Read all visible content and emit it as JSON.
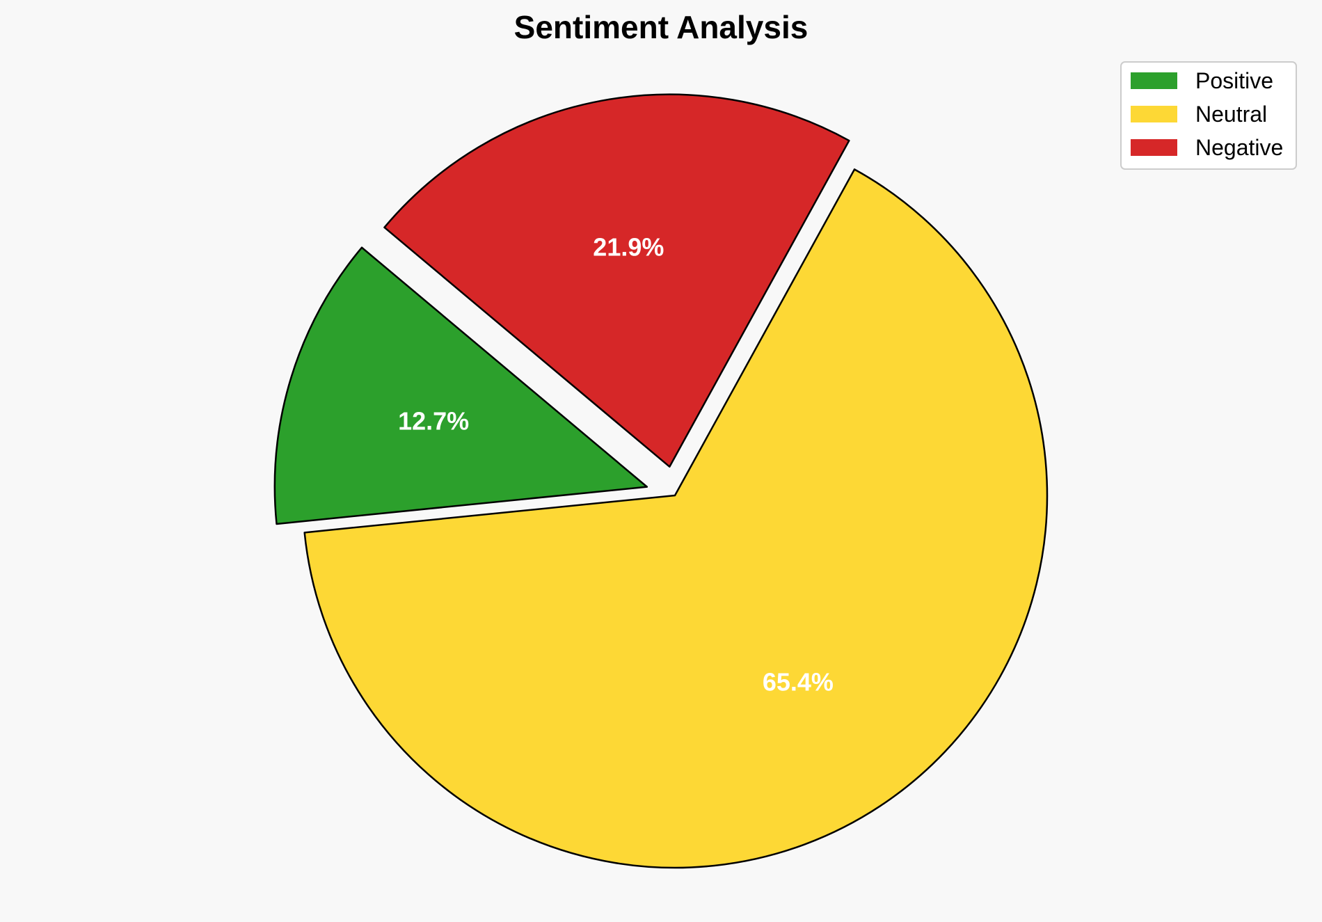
{
  "chart_data": {
    "type": "pie",
    "title": "Sentiment Analysis",
    "labels": [
      "Positive",
      "Neutral",
      "Negative"
    ],
    "values": [
      12.7,
      65.4,
      21.9
    ],
    "value_labels": [
      "12.7%",
      "65.4%",
      "21.9%"
    ],
    "colors": [
      "#2ca02c",
      "#fdd835",
      "#d62728"
    ],
    "exploded": [
      true,
      false,
      true
    ],
    "legend_position": "top-right"
  }
}
